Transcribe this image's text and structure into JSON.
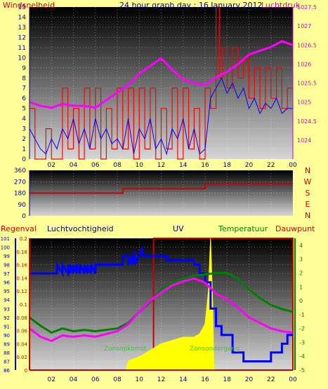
{
  "colors": {
    "background": "#ffff99",
    "wind": "#ff0000",
    "gust": "#0000ff",
    "pressure": "#ff00ff",
    "direction": "#cc0000",
    "humidity": "#0000ff",
    "temperature": "#008000",
    "dewpoint": "#ff00ff",
    "uv_frame": "#cc0000",
    "solar": "#ffff00",
    "title_text": "#000080",
    "left_axis_text": "#000080",
    "compass_text": "#cc0000",
    "temp_axis_text": "#008000",
    "pressure_axis_text": "#cc00cc"
  },
  "chart_data": [
    {
      "type": "line",
      "title": "24 hour graph day : 16 January 2012",
      "left_label": "Windsnelheid",
      "right_label": "Luchtdruk",
      "x_ticks": [
        "02",
        "04",
        "06",
        "08",
        "10",
        "12",
        "14",
        "16",
        "18",
        "20",
        "22",
        "00"
      ],
      "y_left": {
        "min": 0,
        "max": 15,
        "ticks": [
          0,
          1,
          2,
          3,
          4,
          5,
          6,
          7,
          8,
          9,
          10,
          11,
          12,
          13,
          14,
          15
        ]
      },
      "y_right": {
        "min": 1023.5,
        "max": 1027.5,
        "ticks": [
          "1024",
          "1024.5",
          "1025",
          "1025.5",
          "1026",
          "1026.5",
          "1027",
          "1027.5"
        ]
      },
      "series": [
        {
          "key": "wind_gust",
          "axis": "left",
          "color": "#ff0000",
          "x": [
            0,
            0.5,
            0.5,
            1.5,
            1.5,
            2,
            2,
            3,
            3,
            3.5,
            3.5,
            4,
            4,
            4.5,
            4.5,
            5,
            5,
            5.5,
            5.5,
            6,
            6,
            6.5,
            6.5,
            7,
            7,
            7.5,
            7.5,
            8,
            8,
            8.5,
            8.5,
            9,
            9,
            9.5,
            9.5,
            10,
            10,
            10.5,
            10.5,
            11,
            11,
            11.5,
            11.5,
            12,
            12,
            12.5,
            12.5,
            13,
            13,
            13.5,
            13.5,
            14,
            14,
            14.5,
            14.5,
            15,
            15,
            15.5,
            15.5,
            16,
            16,
            16.5,
            16.5,
            17,
            17,
            17.3,
            17.3,
            17.6,
            17.6,
            18,
            18,
            18.5,
            18.5,
            19,
            19,
            19.5,
            19.5,
            20,
            20,
            20.5,
            20.5,
            21,
            21,
            21.5,
            21.5,
            22,
            22,
            22.5,
            22.5,
            23,
            23,
            23.5,
            23.5,
            24
          ],
          "y": [
            5,
            5,
            0,
            0,
            3,
            3,
            0,
            0,
            7,
            7,
            1,
            1,
            5,
            5,
            0,
            0,
            7,
            7,
            1,
            1,
            7,
            7,
            0,
            0,
            5,
            5,
            1,
            1,
            7,
            7,
            1,
            1,
            7,
            7,
            0,
            0,
            7,
            7,
            1,
            1,
            7,
            7,
            0,
            0,
            5,
            5,
            1,
            1,
            7,
            7,
            0,
            0,
            7,
            7,
            1,
            1,
            5,
            5,
            0,
            0,
            7,
            7,
            5,
            5,
            15,
            15,
            8,
            8,
            11,
            11,
            7,
            7,
            11,
            11,
            8,
            8,
            10,
            10,
            6,
            6,
            9,
            9,
            5,
            5,
            9,
            9,
            6,
            6,
            9,
            9,
            5,
            5,
            7,
            7
          ]
        },
        {
          "key": "wind_avg",
          "axis": "left",
          "color": "#0000ff",
          "x": [
            0,
            0.5,
            1,
            1.5,
            2,
            2.5,
            3,
            3.5,
            4,
            4.5,
            5,
            5.5,
            6,
            6.5,
            7,
            7.5,
            8,
            8.5,
            9,
            9.5,
            10,
            10.5,
            11,
            11.5,
            12,
            12.5,
            13,
            13.5,
            14,
            14.5,
            15,
            15.5,
            16,
            16.5,
            17,
            17.5,
            18,
            18.5,
            19,
            19.5,
            20,
            20.5,
            21,
            21.5,
            22,
            22.5,
            23,
            23.5,
            24
          ],
          "y": [
            3,
            2,
            1,
            0.5,
            2,
            1,
            3,
            2,
            4,
            1.5,
            3,
            1,
            4,
            2,
            3,
            1.5,
            2,
            1,
            4,
            0.5,
            3,
            2,
            4,
            1,
            2,
            0.5,
            3,
            2,
            4,
            1,
            3,
            0.5,
            1,
            6,
            7,
            8,
            6.5,
            7.5,
            6,
            7,
            5,
            6,
            4.5,
            5.5,
            5,
            6,
            4.5,
            5,
            5
          ]
        },
        {
          "key": "pressure",
          "axis": "right",
          "color": "#ff00ff",
          "x": [
            0,
            1,
            2,
            3,
            4,
            5,
            6,
            7,
            8,
            9,
            10,
            11,
            12,
            13,
            14,
            15,
            16,
            17,
            18,
            19,
            20,
            21,
            22,
            23,
            24
          ],
          "y": [
            1025.0,
            1024.9,
            1024.85,
            1024.95,
            1024.9,
            1024.9,
            1024.85,
            1025.05,
            1025.25,
            1025.45,
            1025.75,
            1025.95,
            1026.15,
            1025.85,
            1025.6,
            1025.5,
            1025.45,
            1025.65,
            1025.8,
            1026.0,
            1026.25,
            1026.35,
            1026.45,
            1026.6,
            1026.5
          ]
        }
      ]
    },
    {
      "type": "line",
      "y_ticks": [
        0,
        90,
        180,
        270,
        360
      ],
      "compass_labels": [
        "N",
        "W",
        "S",
        "E",
        "N"
      ],
      "y_range": [
        0,
        360
      ],
      "series": [
        {
          "key": "wind_direction",
          "color": "#cc0000",
          "x": [
            0,
            8.5,
            8.5,
            16,
            16,
            24
          ],
          "y": [
            180,
            180,
            215,
            215,
            255,
            255
          ]
        }
      ]
    },
    {
      "type": "line",
      "labels": {
        "rain": "Regenval",
        "humidity": "Luchtvochtigheid",
        "uv": "UV",
        "temperature": "Temperatuur",
        "dewpoint": "Dauwpunt",
        "sunrise": "Zonsopkomst",
        "sunset": "Zonsondergang"
      },
      "x_ticks": [
        "02",
        "04",
        "06",
        "08",
        "10",
        "12",
        "14",
        "16",
        "18",
        "20",
        "22",
        "00"
      ],
      "rain_axis": {
        "min": 0,
        "max": 0.2,
        "ticks": [
          "0",
          "0.02",
          "0.04",
          "0.06",
          "0.08",
          "0.1",
          "0.12",
          "0.14",
          "0.16",
          "0.18",
          "0.2"
        ]
      },
      "humidity_axis": {
        "min": 86,
        "max": 101,
        "ticks": [
          86,
          87,
          88,
          89,
          90,
          91,
          92,
          93,
          94,
          95,
          96,
          97,
          98,
          99,
          100,
          101
        ]
      },
      "temperature_axis": {
        "min": -5,
        "max": 4.5,
        "ticks": [
          4,
          3,
          2,
          1,
          0,
          -1,
          -2,
          -3,
          -4,
          -5
        ]
      },
      "series": [
        {
          "key": "uv_index_frame",
          "axis": "temperature",
          "color": "#cc0000",
          "x": [
            11.3,
            11.3,
            24,
            24
          ],
          "y": [
            -5,
            4.5,
            4.5,
            -5
          ]
        },
        {
          "key": "solar",
          "axis": "rain",
          "color": "#ffff00",
          "x": [
            8.8,
            9,
            10,
            11,
            12,
            13,
            14,
            15,
            15.5,
            16,
            16.3,
            16.5,
            16.7,
            16.8
          ],
          "y": [
            0,
            0.014,
            0.02,
            0.03,
            0.04,
            0.045,
            0.05,
            0.05,
            0.055,
            0.07,
            0.12,
            0.2,
            0.1,
            0
          ],
          "labels_on_chart": true
        },
        {
          "key": "humidity",
          "axis": "humidity",
          "color": "#0000ff",
          "x": [
            0,
            2.5,
            2.5,
            3,
            3,
            3.5,
            3.5,
            3.7,
            3.7,
            4,
            4,
            4.3,
            4.3,
            4.6,
            4.6,
            5,
            5,
            5.3,
            5.3,
            5.6,
            5.6,
            6,
            6,
            6.5,
            6.5,
            8.5,
            8.5,
            9,
            9,
            9.3,
            9.3,
            9.6,
            9.6,
            10,
            10,
            10.3,
            10.3,
            11.5,
            11.5,
            12.5,
            12.5,
            15,
            15,
            15.5,
            15.5,
            16,
            16,
            16.5,
            16.5,
            17,
            17,
            17.5,
            17.5,
            18.5,
            18.5,
            19.5,
            19.5,
            20,
            20,
            22,
            22,
            23,
            23,
            23.5,
            23.5,
            24
          ],
          "y": [
            97,
            97,
            98,
            97,
            98,
            97,
            98,
            97,
            98,
            97,
            98,
            97,
            98,
            97,
            98,
            97,
            98,
            97,
            98,
            97,
            98,
            97,
            98,
            98,
            98,
            98,
            99,
            99,
            98,
            99,
            98,
            99.5,
            98,
            99,
            99,
            100,
            99,
            99,
            99,
            99,
            98.5,
            98.5,
            98,
            98,
            97,
            97,
            96,
            96,
            93,
            93,
            91,
            91,
            90,
            90,
            88,
            88,
            87,
            87,
            87,
            87,
            88,
            88,
            89,
            89,
            90,
            90
          ]
        },
        {
          "key": "temperature",
          "axis": "temperature",
          "color": "#008000",
          "x": [
            0,
            1,
            2,
            3,
            4,
            5,
            6,
            7,
            8,
            9,
            10,
            11,
            12,
            13,
            14,
            15,
            16,
            17,
            18,
            19,
            20,
            21,
            22,
            23,
            24
          ],
          "y": [
            -1.2,
            -1.8,
            -2.3,
            -2.0,
            -2.2,
            -2.1,
            -2.2,
            -2.1,
            -2.0,
            -1.6,
            -0.8,
            -0.1,
            0.8,
            1.3,
            1.6,
            1.8,
            1.9,
            2.0,
            2.0,
            1.6,
            0.8,
            0.2,
            -0.3,
            -0.6,
            -0.8
          ]
        },
        {
          "key": "dewpoint",
          "axis": "temperature",
          "color": "#ff00ff",
          "x": [
            0,
            1,
            2,
            3,
            4,
            5,
            6,
            7,
            8,
            9,
            10,
            11,
            12,
            13,
            14,
            15,
            16,
            17,
            18,
            19,
            20,
            21,
            22,
            23,
            24
          ],
          "y": [
            -2.0,
            -2.6,
            -2.9,
            -2.5,
            -2.6,
            -2.5,
            -2.6,
            -2.4,
            -2.2,
            -1.7,
            -0.8,
            0.0,
            0.6,
            1.1,
            1.4,
            1.6,
            1.3,
            0.5,
            0.1,
            -0.5,
            -1.2,
            -1.6,
            -2.0,
            -2.2,
            -2.3
          ]
        }
      ]
    }
  ]
}
